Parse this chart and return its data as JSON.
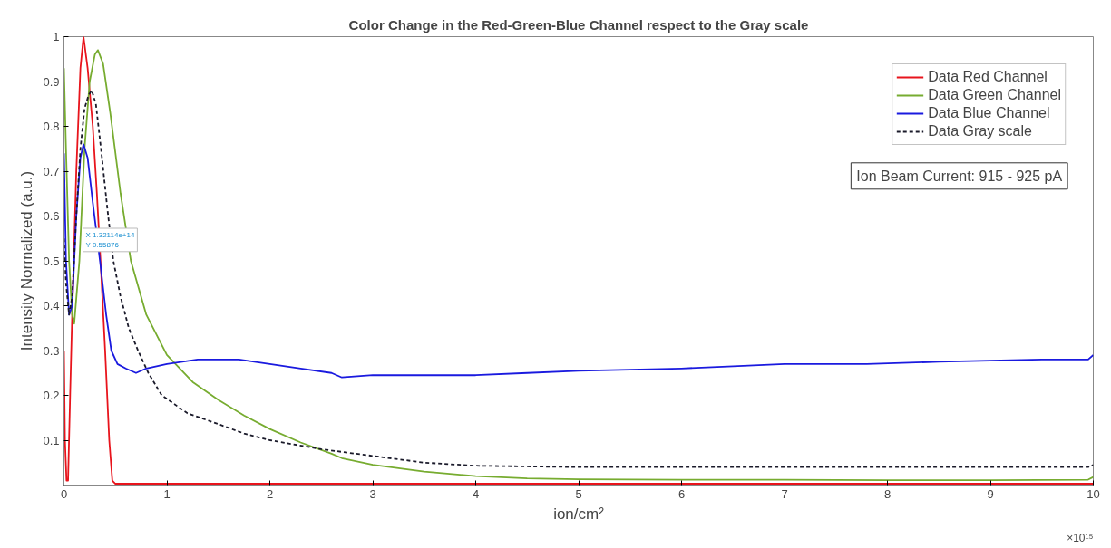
{
  "chart_data": {
    "type": "line",
    "title": "Color Change in the Red-Green-Blue Channel respect to the Gray scale",
    "xlabel": "ion/cm²",
    "ylabel": "Intensity Normalized (a.u.)",
    "xlim": [
      0,
      10
    ],
    "xticks": [
      0,
      1,
      2,
      3,
      4,
      5,
      6,
      7,
      8,
      9,
      10
    ],
    "ylim": [
      0,
      1
    ],
    "yticks": [
      0.1,
      0.2,
      0.3,
      0.4,
      0.5,
      0.6,
      0.7,
      0.8,
      0.9,
      1
    ],
    "grid": false,
    "legend": "top right",
    "marker": "none",
    "series": [
      {
        "name": "Data Red Channel",
        "color": "#e8141c",
        "line_style": "solid",
        "x": [
          0,
          0.01,
          0.025,
          0.04,
          0.06,
          0.08,
          0.12,
          0.16,
          0.19,
          0.23,
          0.28,
          0.32,
          0.36,
          0.4,
          0.44,
          0.47,
          0.5,
          2,
          5,
          10
        ],
        "values": [
          0.3,
          0.1,
          0.01,
          0.01,
          0.2,
          0.38,
          0.7,
          0.93,
          1.0,
          0.93,
          0.8,
          0.65,
          0.48,
          0.3,
          0.1,
          0.01,
          0.003,
          0.003,
          0.003,
          0.003
        ]
      },
      {
        "name": "Data Green Channel",
        "color": "#77ac30",
        "line_style": "solid",
        "x": [
          0,
          0.02,
          0.05,
          0.08,
          0.1,
          0.15,
          0.2,
          0.25,
          0.3,
          0.33,
          0.38,
          0.45,
          0.55,
          0.65,
          0.8,
          1.0,
          1.25,
          1.5,
          1.75,
          2.0,
          2.3,
          2.6,
          2.7,
          3,
          3.5,
          4,
          4.5,
          5,
          6,
          7,
          8,
          9,
          9.95,
          10
        ],
        "values": [
          0.93,
          0.75,
          0.5,
          0.38,
          0.36,
          0.5,
          0.75,
          0.9,
          0.96,
          0.97,
          0.94,
          0.83,
          0.65,
          0.5,
          0.38,
          0.29,
          0.23,
          0.19,
          0.155,
          0.125,
          0.095,
          0.07,
          0.06,
          0.045,
          0.03,
          0.02,
          0.015,
          0.013,
          0.012,
          0.012,
          0.011,
          0.011,
          0.012,
          0.018
        ]
      },
      {
        "name": "Data Blue Channel",
        "color": "#1a1adf",
        "line_style": "solid",
        "x": [
          0,
          0.02,
          0.05,
          0.08,
          0.12,
          0.16,
          0.19,
          0.23,
          0.28,
          0.35,
          0.41,
          0.46,
          0.52,
          0.6,
          0.7,
          0.8,
          1.0,
          1.3,
          1.7,
          2.0,
          2.3,
          2.6,
          2.7,
          3,
          3.5,
          4,
          4.5,
          5,
          6,
          6.5,
          7,
          7.8,
          8.5,
          9.5,
          9.95,
          10
        ],
        "values": [
          0.74,
          0.5,
          0.38,
          0.4,
          0.6,
          0.73,
          0.76,
          0.73,
          0.63,
          0.5,
          0.38,
          0.3,
          0.27,
          0.26,
          0.25,
          0.26,
          0.27,
          0.28,
          0.28,
          0.27,
          0.26,
          0.25,
          0.24,
          0.245,
          0.245,
          0.245,
          0.25,
          0.255,
          0.26,
          0.265,
          0.27,
          0.27,
          0.275,
          0.28,
          0.28,
          0.29
        ]
      },
      {
        "name": "Data Gray scale",
        "color": "#1a1a2a",
        "line_style": "dashed",
        "x": [
          0,
          0.02,
          0.05,
          0.08,
          0.12,
          0.16,
          0.2,
          0.24,
          0.27,
          0.31,
          0.36,
          0.42,
          0.48,
          0.55,
          0.63,
          0.72,
          0.82,
          0.95,
          1.2,
          1.45,
          1.75,
          2.0,
          2.5,
          3,
          3.5,
          4,
          5,
          6,
          7,
          8,
          9,
          9.95,
          10
        ],
        "values": [
          0.55,
          0.45,
          0.38,
          0.42,
          0.6,
          0.75,
          0.84,
          0.87,
          0.88,
          0.85,
          0.75,
          0.62,
          0.5,
          0.42,
          0.35,
          0.3,
          0.25,
          0.2,
          0.16,
          0.14,
          0.115,
          0.1,
          0.08,
          0.065,
          0.05,
          0.043,
          0.04,
          0.04,
          0.04,
          0.04,
          0.04,
          0.04,
          0.045
        ]
      }
    ],
    "annotations": [
      "Ion Beam Current: 915 - 925 pA",
      "×10¹⁵",
      {
        "text": "X 1.32114e+14\nY 0.55876",
        "x": 0.132114,
        "y": 0.55876
      }
    ]
  }
}
